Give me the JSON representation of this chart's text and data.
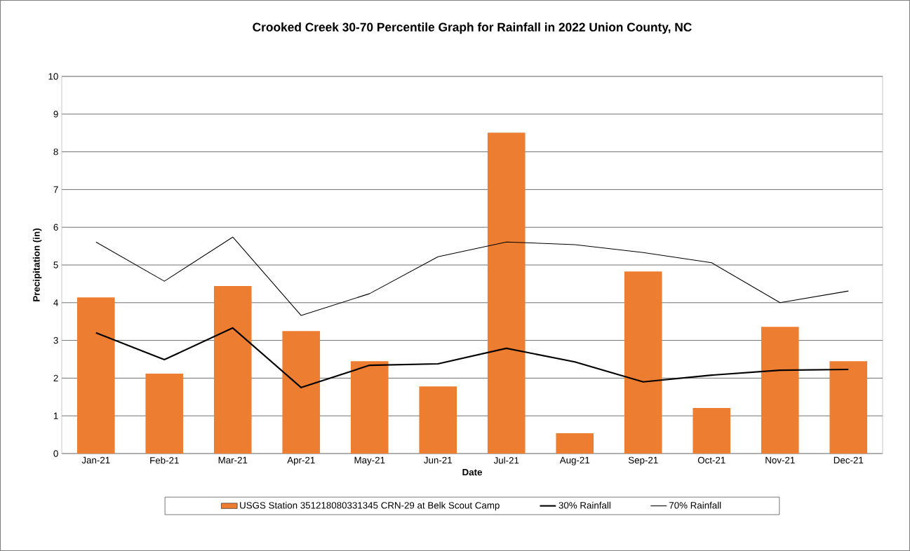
{
  "chart_data": {
    "type": "bar",
    "title": "Crooked Creek 30-70 Percentile Graph for Rainfall in 2022 Union County, NC",
    "xlabel": "Date",
    "ylabel": "Precipitation (in)",
    "categories": [
      "Jan-21",
      "Feb-21",
      "Mar-21",
      "Apr-21",
      "May-21",
      "Jun-21",
      "Jul-21",
      "Aug-21",
      "Sep-21",
      "Oct-21",
      "Nov-21",
      "Dec-21"
    ],
    "series": [
      {
        "name": "USGS Station 351218080331345 CRN-29 at Belk Scout Camp",
        "color": "#ed7d31",
        "values": [
          4.14,
          2.12,
          4.44,
          3.25,
          2.45,
          1.78,
          8.51,
          0.54,
          4.83,
          1.21,
          3.36,
          2.45
        ]
      },
      {
        "name": "30% Rainfall",
        "type": "line",
        "color": "#000000",
        "values": [
          3.2,
          2.49,
          3.33,
          1.75,
          2.34,
          2.38,
          2.79,
          2.43,
          1.9,
          2.08,
          2.21,
          2.23
        ]
      },
      {
        "name": "70% Rainfall",
        "type": "line",
        "color": "#000000",
        "values": [
          5.61,
          4.57,
          5.74,
          3.66,
          4.24,
          5.22,
          5.61,
          5.54,
          5.33,
          5.06,
          4.0,
          4.31
        ]
      }
    ],
    "ylim": [
      0,
      10
    ],
    "yticks": [
      0,
      1,
      2,
      3,
      4,
      5,
      6,
      7,
      8,
      9,
      10
    ],
    "grid": "y",
    "legend": "bottom",
    "marker": "none",
    "line_style": "solid"
  }
}
